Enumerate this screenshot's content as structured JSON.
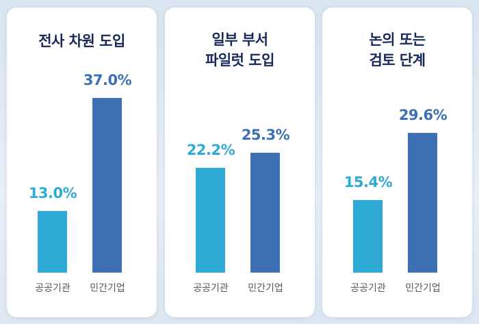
{
  "chart_data": [
    {
      "type": "bar",
      "title": "전사 차원 도입",
      "categories": [
        "공공기관",
        "민간기업"
      ],
      "values": [
        13.0,
        37.0
      ],
      "labels": [
        "13.0%",
        "37.0%"
      ],
      "colors": [
        "#2eaad4",
        "#3d6fb4"
      ]
    },
    {
      "type": "bar",
      "title": "일부 부서\n파일럿 도입",
      "categories": [
        "공공기관",
        "민간기업"
      ],
      "values": [
        22.2,
        25.3
      ],
      "labels": [
        "22.2%",
        "25.3%"
      ],
      "colors": [
        "#2eaad4",
        "#3d6fb4"
      ]
    },
    {
      "type": "bar",
      "title": "논의 또는\n검토 단계",
      "categories": [
        "공공기관",
        "민간기업"
      ],
      "values": [
        15.4,
        29.6
      ],
      "labels": [
        "15.4%",
        "29.6%"
      ],
      "colors": [
        "#2eaad4",
        "#3d6fb4"
      ]
    }
  ]
}
